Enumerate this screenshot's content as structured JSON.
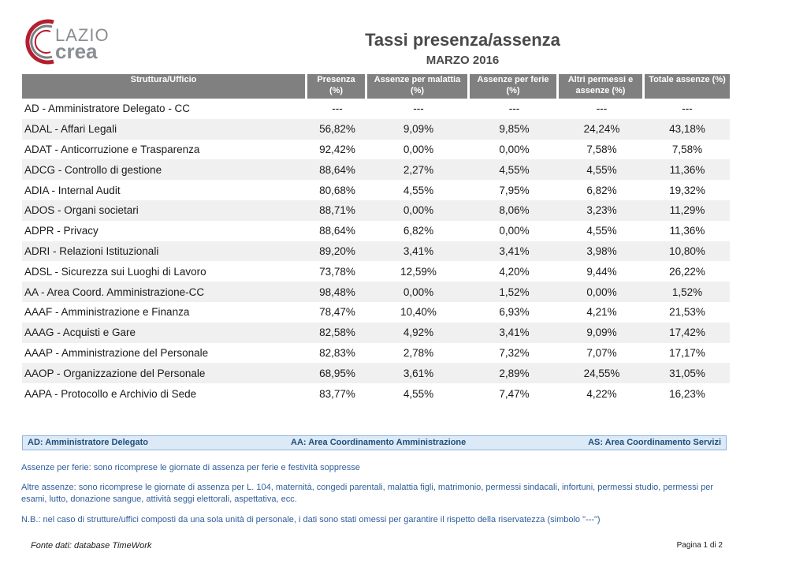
{
  "logo": {
    "line1": "LAZIO",
    "line2": "crea"
  },
  "header": {
    "title": "Tassi presenza/assenza",
    "subtitle": "MARZO 2016"
  },
  "table": {
    "columns": [
      "Struttura/Ufficio",
      "Presenza (%)",
      "Assenze per malattia (%)",
      "Assenze per ferie (%)",
      "Altri permessi e assenze (%)",
      "Totale assenze (%)"
    ],
    "rows": [
      [
        "AD - Amministratore Delegato - CC",
        "---",
        "---",
        "---",
        "---",
        "---"
      ],
      [
        "ADAL - Affari Legali",
        "56,82%",
        "9,09%",
        "9,85%",
        "24,24%",
        "43,18%"
      ],
      [
        "ADAT - Anticorruzione e Trasparenza",
        "92,42%",
        "0,00%",
        "0,00%",
        "7,58%",
        "7,58%"
      ],
      [
        "ADCG - Controllo di gestione",
        "88,64%",
        "2,27%",
        "4,55%",
        "4,55%",
        "11,36%"
      ],
      [
        "ADIA - Internal Audit",
        "80,68%",
        "4,55%",
        "7,95%",
        "6,82%",
        "19,32%"
      ],
      [
        "ADOS - Organi societari",
        "88,71%",
        "0,00%",
        "8,06%",
        "3,23%",
        "11,29%"
      ],
      [
        "ADPR - Privacy",
        "88,64%",
        "6,82%",
        "0,00%",
        "4,55%",
        "11,36%"
      ],
      [
        "ADRI - Relazioni Istituzionali",
        "89,20%",
        "3,41%",
        "3,41%",
        "3,98%",
        "10,80%"
      ],
      [
        "ADSL - Sicurezza sui Luoghi di Lavoro",
        "73,78%",
        "12,59%",
        "4,20%",
        "9,44%",
        "26,22%"
      ],
      [
        "AA - Area Coord. Amministrazione-CC",
        "98,48%",
        "0,00%",
        "1,52%",
        "0,00%",
        "1,52%"
      ],
      [
        "AAAF - Amministrazione e Finanza",
        "78,47%",
        "10,40%",
        "6,93%",
        "4,21%",
        "21,53%"
      ],
      [
        "AAAG - Acquisti e Gare",
        "82,58%",
        "4,92%",
        "3,41%",
        "9,09%",
        "17,42%"
      ],
      [
        "AAAP - Amministrazione del Personale",
        "82,83%",
        "2,78%",
        "7,32%",
        "7,07%",
        "17,17%"
      ],
      [
        "AAOP - Organizzazione del Personale",
        "68,95%",
        "3,61%",
        "2,89%",
        "24,55%",
        "31,05%"
      ],
      [
        "AAPA - Protocollo e Archivio di Sede",
        "83,77%",
        "4,55%",
        "7,47%",
        "4,22%",
        "16,23%"
      ]
    ]
  },
  "legend": {
    "ad": "AD: Amministratore Delegato",
    "aa": "AA: Area Coordinamento Amministrazione",
    "as": "AS: Area Coordinamento Servizi"
  },
  "notes": {
    "ferie": "Assenze per ferie: sono ricomprese le giornate di assenza per ferie e festività soppresse",
    "altre": "Altre assenze: sono ricomprese le giornate di assenza per L. 104, maternità, congedi parentali, malattia figli, matrimonio, permessi sindacali, infortuni, permessi studio, permessi per esami, lutto, donazione sangue, attività seggi elettorali, aspettativa, ecc.",
    "nb": "N.B.: nel caso di strutture/uffici composti da una sola unità di personale, i dati sono stati omessi per garantire il rispetto della riservatezza (simbolo \"---\")"
  },
  "footer": {
    "source": "Fonte dati: database TimeWork",
    "page": "Pagina 1 di 2"
  },
  "colors": {
    "header_bg": "#808080",
    "zebra": "#f0f0f0",
    "legend_bg": "#dce9f7",
    "note_text": "#2e5d9b",
    "logo_red": "#b31f2e"
  }
}
